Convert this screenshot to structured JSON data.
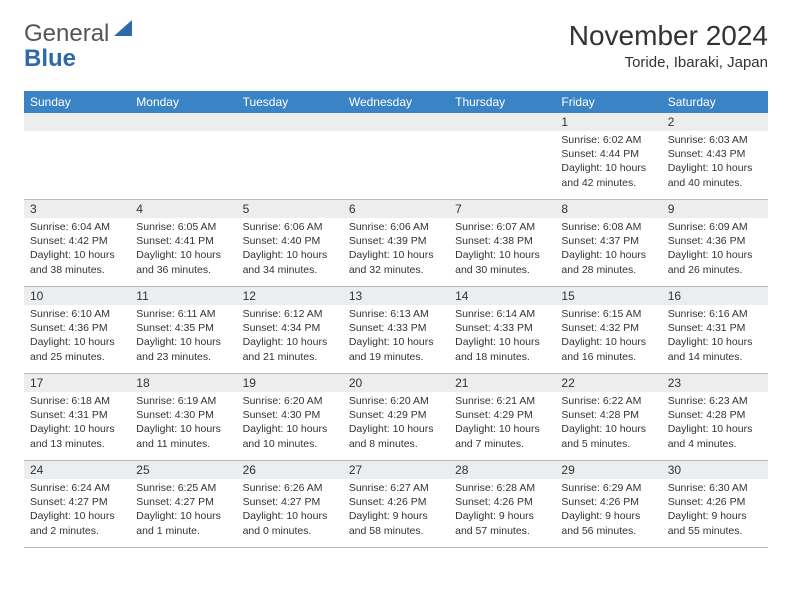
{
  "logo": {
    "text1": "General",
    "text2": "Blue",
    "sail_color": "#2f6aa8"
  },
  "title": "November 2024",
  "location": "Toride, Ibaraki, Japan",
  "header_bg": "#3a83c5",
  "weekdays": [
    "Sunday",
    "Monday",
    "Tuesday",
    "Wednesday",
    "Thursday",
    "Friday",
    "Saturday"
  ],
  "weeks": [
    [
      {
        "n": "",
        "sr": "",
        "ss": "",
        "dl": ""
      },
      {
        "n": "",
        "sr": "",
        "ss": "",
        "dl": ""
      },
      {
        "n": "",
        "sr": "",
        "ss": "",
        "dl": ""
      },
      {
        "n": "",
        "sr": "",
        "ss": "",
        "dl": ""
      },
      {
        "n": "",
        "sr": "",
        "ss": "",
        "dl": ""
      },
      {
        "n": "1",
        "sr": "Sunrise: 6:02 AM",
        "ss": "Sunset: 4:44 PM",
        "dl": "Daylight: 10 hours and 42 minutes."
      },
      {
        "n": "2",
        "sr": "Sunrise: 6:03 AM",
        "ss": "Sunset: 4:43 PM",
        "dl": "Daylight: 10 hours and 40 minutes."
      }
    ],
    [
      {
        "n": "3",
        "sr": "Sunrise: 6:04 AM",
        "ss": "Sunset: 4:42 PM",
        "dl": "Daylight: 10 hours and 38 minutes."
      },
      {
        "n": "4",
        "sr": "Sunrise: 6:05 AM",
        "ss": "Sunset: 4:41 PM",
        "dl": "Daylight: 10 hours and 36 minutes."
      },
      {
        "n": "5",
        "sr": "Sunrise: 6:06 AM",
        "ss": "Sunset: 4:40 PM",
        "dl": "Daylight: 10 hours and 34 minutes."
      },
      {
        "n": "6",
        "sr": "Sunrise: 6:06 AM",
        "ss": "Sunset: 4:39 PM",
        "dl": "Daylight: 10 hours and 32 minutes."
      },
      {
        "n": "7",
        "sr": "Sunrise: 6:07 AM",
        "ss": "Sunset: 4:38 PM",
        "dl": "Daylight: 10 hours and 30 minutes."
      },
      {
        "n": "8",
        "sr": "Sunrise: 6:08 AM",
        "ss": "Sunset: 4:37 PM",
        "dl": "Daylight: 10 hours and 28 minutes."
      },
      {
        "n": "9",
        "sr": "Sunrise: 6:09 AM",
        "ss": "Sunset: 4:36 PM",
        "dl": "Daylight: 10 hours and 26 minutes."
      }
    ],
    [
      {
        "n": "10",
        "sr": "Sunrise: 6:10 AM",
        "ss": "Sunset: 4:36 PM",
        "dl": "Daylight: 10 hours and 25 minutes."
      },
      {
        "n": "11",
        "sr": "Sunrise: 6:11 AM",
        "ss": "Sunset: 4:35 PM",
        "dl": "Daylight: 10 hours and 23 minutes."
      },
      {
        "n": "12",
        "sr": "Sunrise: 6:12 AM",
        "ss": "Sunset: 4:34 PM",
        "dl": "Daylight: 10 hours and 21 minutes."
      },
      {
        "n": "13",
        "sr": "Sunrise: 6:13 AM",
        "ss": "Sunset: 4:33 PM",
        "dl": "Daylight: 10 hours and 19 minutes."
      },
      {
        "n": "14",
        "sr": "Sunrise: 6:14 AM",
        "ss": "Sunset: 4:33 PM",
        "dl": "Daylight: 10 hours and 18 minutes."
      },
      {
        "n": "15",
        "sr": "Sunrise: 6:15 AM",
        "ss": "Sunset: 4:32 PM",
        "dl": "Daylight: 10 hours and 16 minutes."
      },
      {
        "n": "16",
        "sr": "Sunrise: 6:16 AM",
        "ss": "Sunset: 4:31 PM",
        "dl": "Daylight: 10 hours and 14 minutes."
      }
    ],
    [
      {
        "n": "17",
        "sr": "Sunrise: 6:18 AM",
        "ss": "Sunset: 4:31 PM",
        "dl": "Daylight: 10 hours and 13 minutes."
      },
      {
        "n": "18",
        "sr": "Sunrise: 6:19 AM",
        "ss": "Sunset: 4:30 PM",
        "dl": "Daylight: 10 hours and 11 minutes."
      },
      {
        "n": "19",
        "sr": "Sunrise: 6:20 AM",
        "ss": "Sunset: 4:30 PM",
        "dl": "Daylight: 10 hours and 10 minutes."
      },
      {
        "n": "20",
        "sr": "Sunrise: 6:20 AM",
        "ss": "Sunset: 4:29 PM",
        "dl": "Daylight: 10 hours and 8 minutes."
      },
      {
        "n": "21",
        "sr": "Sunrise: 6:21 AM",
        "ss": "Sunset: 4:29 PM",
        "dl": "Daylight: 10 hours and 7 minutes."
      },
      {
        "n": "22",
        "sr": "Sunrise: 6:22 AM",
        "ss": "Sunset: 4:28 PM",
        "dl": "Daylight: 10 hours and 5 minutes."
      },
      {
        "n": "23",
        "sr": "Sunrise: 6:23 AM",
        "ss": "Sunset: 4:28 PM",
        "dl": "Daylight: 10 hours and 4 minutes."
      }
    ],
    [
      {
        "n": "24",
        "sr": "Sunrise: 6:24 AM",
        "ss": "Sunset: 4:27 PM",
        "dl": "Daylight: 10 hours and 2 minutes."
      },
      {
        "n": "25",
        "sr": "Sunrise: 6:25 AM",
        "ss": "Sunset: 4:27 PM",
        "dl": "Daylight: 10 hours and 1 minute."
      },
      {
        "n": "26",
        "sr": "Sunrise: 6:26 AM",
        "ss": "Sunset: 4:27 PM",
        "dl": "Daylight: 10 hours and 0 minutes."
      },
      {
        "n": "27",
        "sr": "Sunrise: 6:27 AM",
        "ss": "Sunset: 4:26 PM",
        "dl": "Daylight: 9 hours and 58 minutes."
      },
      {
        "n": "28",
        "sr": "Sunrise: 6:28 AM",
        "ss": "Sunset: 4:26 PM",
        "dl": "Daylight: 9 hours and 57 minutes."
      },
      {
        "n": "29",
        "sr": "Sunrise: 6:29 AM",
        "ss": "Sunset: 4:26 PM",
        "dl": "Daylight: 9 hours and 56 minutes."
      },
      {
        "n": "30",
        "sr": "Sunrise: 6:30 AM",
        "ss": "Sunset: 4:26 PM",
        "dl": "Daylight: 9 hours and 55 minutes."
      }
    ]
  ]
}
